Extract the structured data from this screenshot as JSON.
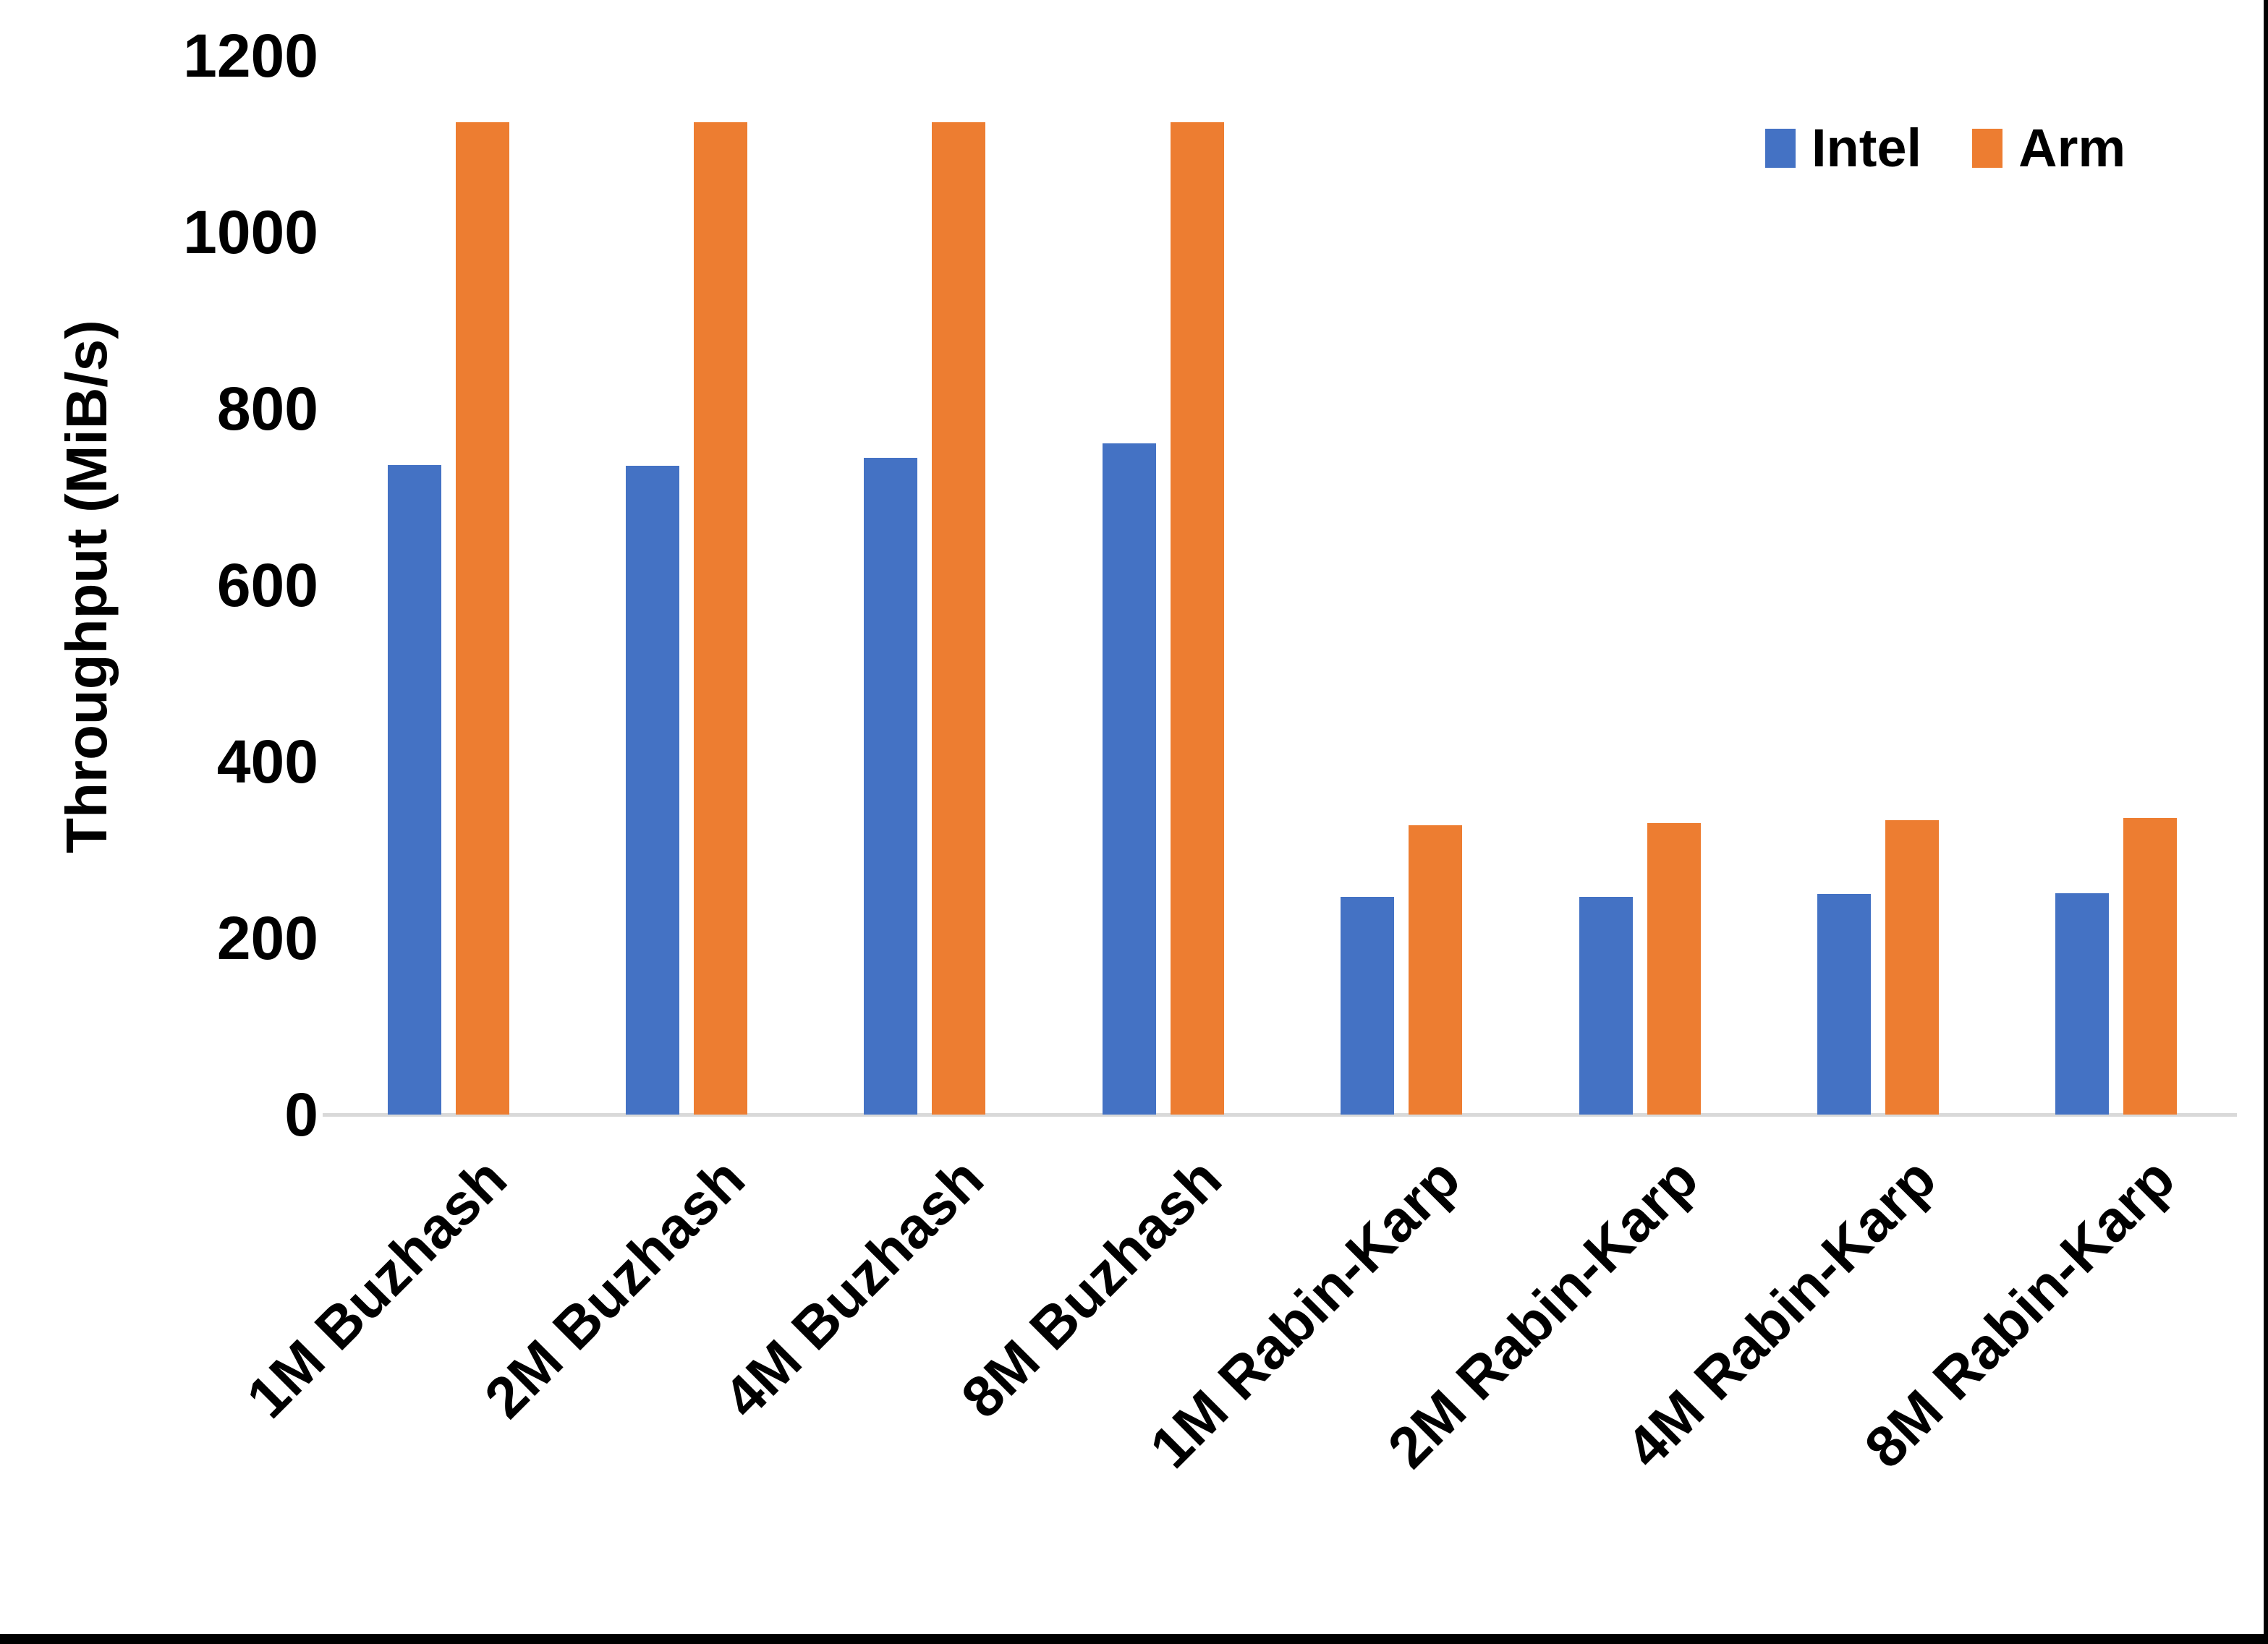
{
  "chart_data": {
    "type": "bar",
    "title": "",
    "xlabel": "",
    "ylabel": "Throughput (MiB/s)",
    "ylim": [
      0,
      1200
    ],
    "yticks": [
      0,
      200,
      400,
      600,
      800,
      1000,
      1200
    ],
    "grid": false,
    "legend_position": "top-right",
    "categories": [
      "1M Buzhash",
      "2M Buzhash",
      "4M Buzhash",
      "8M Buzhash",
      "1M Rabin-Karp",
      "2M Rabin-Karp",
      "4M Rabin-Karp",
      "8M Rabin-Karp"
    ],
    "series": [
      {
        "name": "Intel",
        "color": "#4472C4",
        "values": [
          736,
          735,
          744,
          761,
          247,
          247,
          250,
          251
        ]
      },
      {
        "name": "Arm",
        "color": "#ED7D31",
        "values": [
          1125,
          1125,
          1125,
          1125,
          328,
          330,
          334,
          336
        ]
      }
    ]
  },
  "legend": {
    "items": [
      {
        "label": "Intel",
        "color": "#4472C4"
      },
      {
        "label": "Arm",
        "color": "#ED7D31"
      }
    ]
  },
  "colors": {
    "axis_line": "#D9D9D9",
    "text": "#000000",
    "background": "#FFFFFF",
    "frame": "#000000"
  }
}
